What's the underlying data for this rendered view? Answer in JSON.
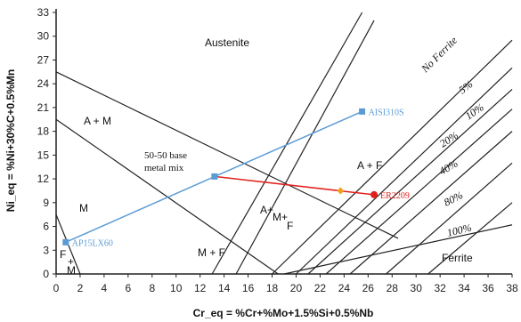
{
  "chart_data": {
    "type": "line",
    "title": "",
    "xlabel": "Cr_eq = %Cr+%Mo+1.5%Si+0.5%Nb",
    "ylabel": "Ni_eq = %Ni+30%C+0.5%Mn",
    "xlim": [
      0,
      38
    ],
    "ylim": [
      0,
      33
    ],
    "xticks": [
      0,
      2,
      4,
      6,
      8,
      10,
      12,
      14,
      16,
      18,
      20,
      22,
      24,
      26,
      28,
      30,
      32,
      34,
      36,
      38
    ],
    "yticks": [
      0,
      3,
      6,
      9,
      12,
      15,
      18,
      21,
      24,
      27,
      30,
      33
    ],
    "grid": false,
    "boundaries": [
      {
        "x": [
          0,
          28.5
        ],
        "y": [
          25.5,
          4.5
        ]
      },
      {
        "x": [
          0,
          18.5
        ],
        "y": [
          19.5,
          0
        ]
      },
      {
        "x": [
          13,
          25.5
        ],
        "y": [
          0,
          33
        ]
      },
      {
        "x": [
          15,
          26.5
        ],
        "y": [
          0,
          32
        ]
      },
      {
        "x": [
          18,
          38
        ],
        "y": [
          0,
          29.5
        ]
      },
      {
        "x": [
          20,
          38
        ],
        "y": [
          0,
          26
        ]
      },
      {
        "x": [
          21,
          38
        ],
        "y": [
          0,
          23.3
        ]
      },
      {
        "x": [
          22.5,
          38
        ],
        "y": [
          0,
          20.8
        ]
      },
      {
        "x": [
          24.5,
          38
        ],
        "y": [
          0,
          18
        ]
      },
      {
        "x": [
          27.5,
          38
        ],
        "y": [
          0,
          14
        ]
      },
      {
        "x": [
          31,
          38
        ],
        "y": [
          0,
          9
        ]
      },
      {
        "x": [
          19,
          38
        ],
        "y": [
          0,
          6.2
        ]
      },
      {
        "x": [
          0,
          2
        ],
        "y": [
          7.5,
          0
        ]
      }
    ],
    "ferrite_labels": [
      "No Ferrite",
      "5%",
      "10%",
      "20%",
      "40%",
      "80%",
      "100%"
    ],
    "region_labels": [
      "Austenite",
      "A + M",
      "M",
      "A + F",
      "A+",
      "M+",
      "F",
      "M + F",
      "Ferrite",
      "F",
      "+",
      "M"
    ],
    "annotation": [
      "50-50 base",
      "metal mix"
    ],
    "dilution_lines": [
      {
        "color": "#5b9bd5",
        "x": [
          0.8,
          25.5
        ],
        "y": [
          4,
          20.5
        ]
      },
      {
        "color": "#e0201c",
        "x": [
          13.2,
          26.5
        ],
        "y": [
          12.3,
          10
        ]
      }
    ],
    "points": [
      {
        "name": "AISI310S",
        "x": 25.5,
        "y": 20.5,
        "color": "#5b9bd5"
      },
      {
        "name": "AP15LX60",
        "x": 0.8,
        "y": 4,
        "color": "#5b9bd5"
      },
      {
        "name": "",
        "x": 13.2,
        "y": 12.3,
        "color": "#5b9bd5"
      },
      {
        "name": "ER2209",
        "x": 26.5,
        "y": 10,
        "color": "#e0201c"
      },
      {
        "name": "",
        "x": 23.7,
        "y": 10.5,
        "color": "#f0a020"
      }
    ]
  }
}
